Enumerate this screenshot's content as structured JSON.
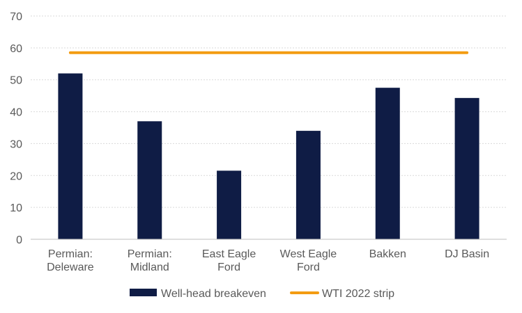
{
  "chart_data": {
    "type": "bar",
    "title": "",
    "xlabel": "",
    "ylabel": "",
    "categories": [
      [
        "Permian:",
        "Deleware"
      ],
      [
        "Permian:",
        "Midland"
      ],
      [
        "East Eagle",
        "Ford"
      ],
      [
        "West Eagle",
        "Ford"
      ],
      [
        "Bakken"
      ],
      [
        "DJ Basin"
      ]
    ],
    "series": [
      {
        "name": "Well-head breakeven",
        "type": "bar",
        "color": "#0f1c45",
        "values": [
          52,
          37,
          21.5,
          34,
          47.5,
          44.3
        ]
      },
      {
        "name": "WTI 2022 strip",
        "type": "line",
        "color": "#f39c12",
        "values": [
          58.5,
          58.5,
          58.5,
          58.5,
          58.5,
          58.5
        ]
      }
    ],
    "ylim": [
      0,
      70
    ],
    "yticks": [
      0,
      10,
      20,
      30,
      40,
      50,
      60,
      70
    ],
    "grid": true,
    "legend_position": "bottom"
  }
}
